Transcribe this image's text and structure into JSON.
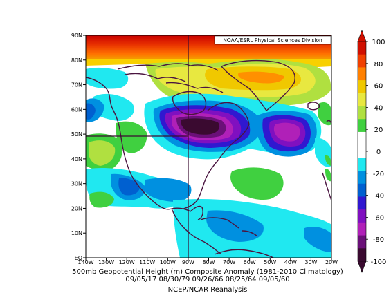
{
  "map": {
    "credit": "NOAA/ESRL Physical Sciences Division",
    "lat_labels": [
      "90N",
      "80N",
      "70N",
      "60N",
      "50N",
      "40N",
      "30N",
      "20N",
      "10N",
      "EQ"
    ],
    "lon_labels": [
      "140W",
      "130W",
      "120W",
      "110W",
      "100W",
      "90W",
      "80W",
      "70W",
      "60W",
      "50W",
      "40W",
      "30W",
      "20W"
    ],
    "region": {
      "lon_range": [
        -140,
        -20
      ],
      "lat_range": [
        0,
        90
      ]
    },
    "field": "500mb geopotential height composite anomaly (m)",
    "features": [
      {
        "name": "polar positive anomaly",
        "color": "#c00000"
      },
      {
        "name": "Great Lakes / Hudson Bay negative anomaly",
        "color": "#4a0a40"
      },
      {
        "name": "North Atlantic negative anomaly",
        "color": "#a020c0"
      }
    ]
  },
  "colorbar": {
    "ticks": [
      "100",
      "80",
      "60",
      "40",
      "20",
      "0",
      "-20",
      "-40",
      "-60",
      "-80",
      "-100"
    ],
    "colors": [
      "#d01000",
      "#f04000",
      "#ff8000",
      "#f0c800",
      "#e8e840",
      "#b0e040",
      "#40d040",
      "#ffffff",
      "#ffffff",
      "#20e8f0",
      "#0090e0",
      "#0060d0",
      "#3018d0",
      "#8010c0",
      "#b020b8",
      "#6a1078",
      "#3a0a30"
    ]
  },
  "caption": {
    "line1": "500mb Geopotential Height (m) Composite Anomaly (1981-2010 Climatology)",
    "line2": "09/05/17 08/30/79 09/26/66 08/25/64 09/05/60",
    "line3": "NCEP/NCAR Reanalysis"
  }
}
